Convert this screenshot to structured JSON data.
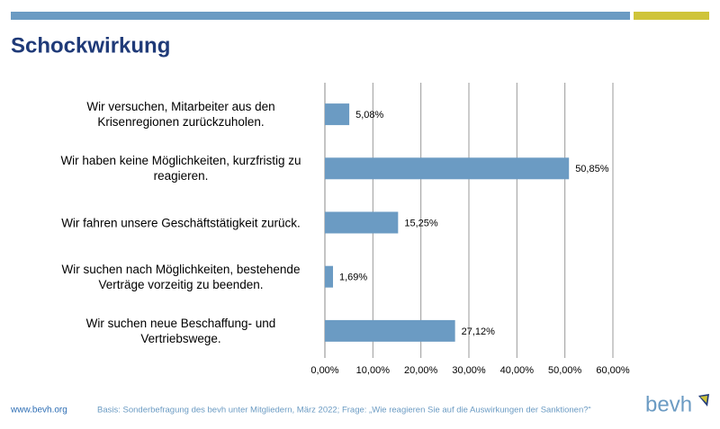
{
  "header": {
    "title": "Schockwirkung"
  },
  "chart_data": {
    "type": "bar",
    "orientation": "horizontal",
    "categories": [
      "Wir versuchen, Mitarbeiter aus den Krisenregionen zurückzuholen.",
      "Wir haben keine Möglichkeiten, kurzfristig zu reagieren.",
      "Wir fahren unsere Geschäftstätigkeit zurück.",
      "Wir suchen nach Möglichkeiten, bestehende Verträge vorzeitig zu beenden.",
      "Wir suchen neue Beschaffung- und Vertriebswege."
    ],
    "values": [
      5.08,
      50.85,
      15.25,
      1.69,
      27.12
    ],
    "value_labels": [
      "5,08%",
      "50,85%",
      "15,25%",
      "1,69%",
      "27,12%"
    ],
    "color": "#6b9bc3",
    "xlim": [
      0,
      60
    ],
    "xticks": [
      {
        "value": 0,
        "label": "0,00%"
      },
      {
        "value": 10,
        "label": "10,00%"
      },
      {
        "value": 20,
        "label": "20,00%"
      },
      {
        "value": 30,
        "label": "30,00%"
      },
      {
        "value": 40,
        "label": "40,00%"
      },
      {
        "value": 50,
        "label": "50,00%"
      },
      {
        "value": 60,
        "label": "60,00%"
      }
    ],
    "grid": true
  },
  "footer": {
    "website": "www.bevh.org",
    "note": "Basis: Sonderbefragung des bevh unter Mitgliedern, März 2022; Frage: „Wie reagieren Sie auf die Auswirkungen der Sanktionen?“",
    "logo": "bevh"
  }
}
